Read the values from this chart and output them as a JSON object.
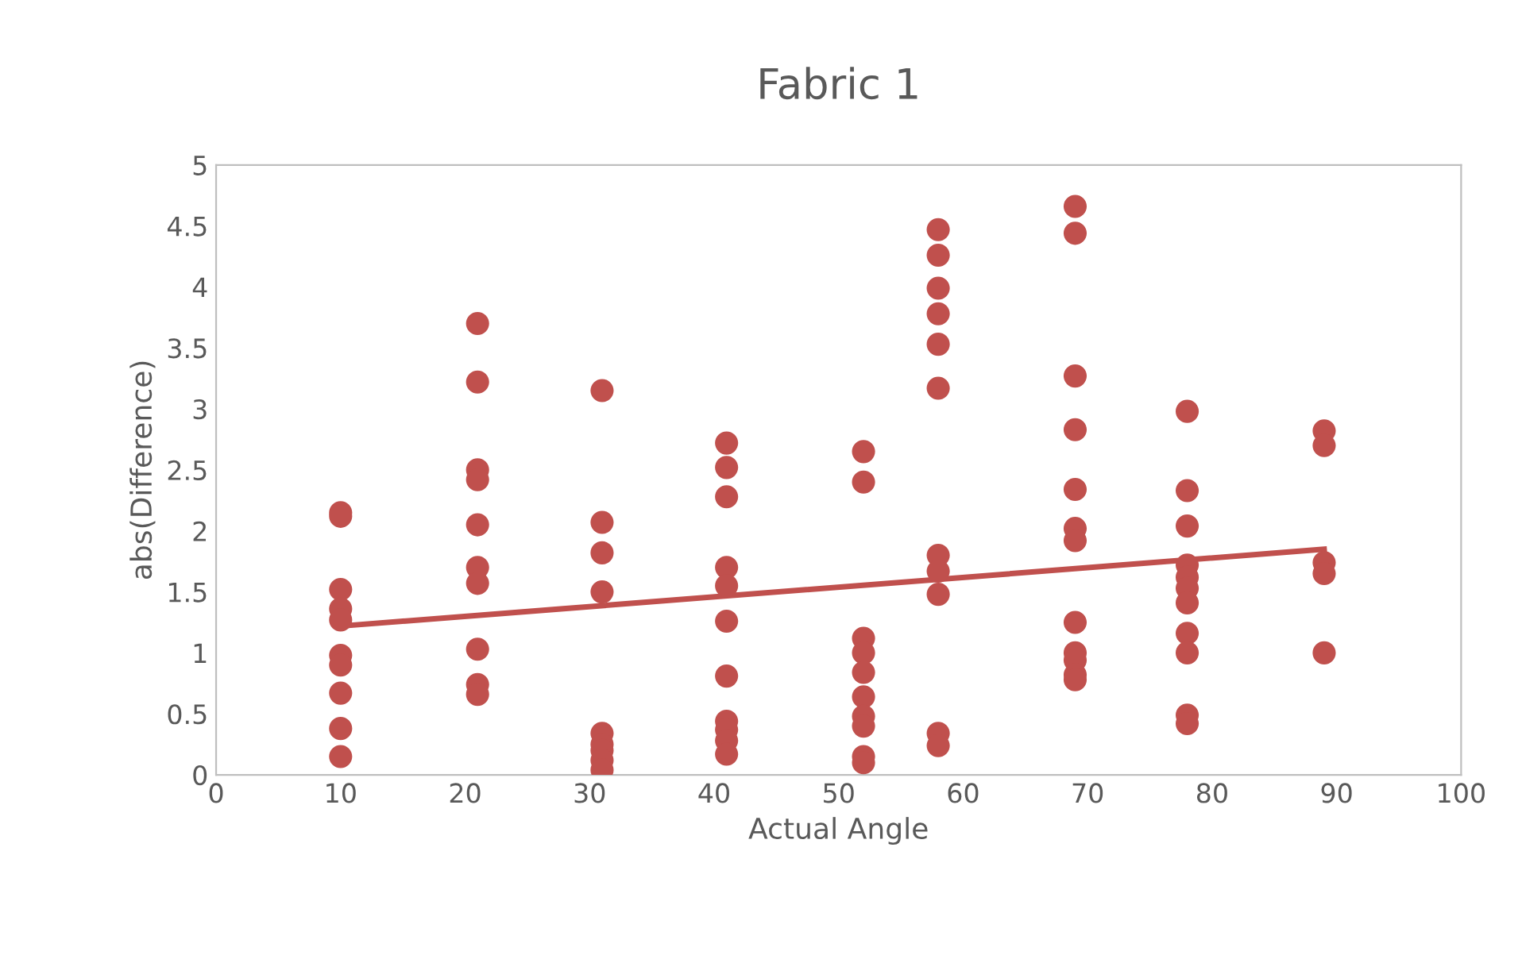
{
  "chart_data": {
    "type": "scatter",
    "title": "Fabric 1",
    "xlabel": "Actual Angle",
    "ylabel": "abs(Difference)",
    "xlim": [
      0,
      100
    ],
    "xticks": [
      0,
      10,
      20,
      30,
      40,
      50,
      60,
      70,
      80,
      90,
      100
    ],
    "ylim": [
      0,
      5
    ],
    "yticks": [
      0,
      0.5,
      1,
      1.5,
      2,
      2.5,
      3,
      3.5,
      4,
      4.5,
      5
    ],
    "grid": false,
    "series": [
      {
        "color": "#c0504d",
        "marker": "circle",
        "x": [
          10,
          10,
          10,
          10,
          10,
          10,
          10,
          10,
          10,
          10,
          21,
          21,
          21,
          21,
          21,
          21,
          21,
          21,
          21,
          21,
          31,
          31,
          31,
          31,
          31,
          31,
          31,
          31,
          31,
          41,
          41,
          41,
          41,
          41,
          41,
          41,
          41,
          41,
          41,
          41,
          52,
          52,
          52,
          52,
          52,
          52,
          52,
          52,
          52,
          52,
          58,
          58,
          58,
          58,
          58,
          58,
          58,
          58,
          58,
          58,
          58,
          69,
          69,
          69,
          69,
          69,
          69,
          69,
          69,
          69,
          69,
          69,
          69,
          78,
          78,
          78,
          78,
          78,
          78,
          78,
          78,
          78,
          78,
          78,
          89,
          89,
          89,
          89,
          89
        ],
        "values": [
          2.15,
          2.12,
          1.52,
          1.36,
          1.27,
          0.98,
          0.9,
          0.67,
          0.38,
          0.15,
          3.7,
          3.22,
          2.5,
          2.42,
          2.05,
          1.7,
          1.57,
          1.03,
          0.74,
          0.66,
          3.15,
          2.07,
          1.82,
          1.5,
          0.34,
          0.25,
          0.2,
          0.12,
          0.04,
          2.72,
          2.52,
          2.28,
          1.7,
          1.55,
          1.26,
          0.81,
          0.44,
          0.37,
          0.28,
          0.17,
          2.65,
          2.4,
          1.12,
          1.0,
          0.84,
          0.64,
          0.48,
          0.4,
          0.15,
          0.1,
          4.47,
          4.26,
          3.99,
          3.78,
          3.53,
          3.17,
          1.8,
          1.67,
          1.48,
          0.34,
          0.24,
          4.66,
          4.44,
          3.27,
          2.83,
          2.34,
          2.02,
          1.92,
          1.25,
          1.0,
          0.94,
          0.82,
          0.78,
          2.98,
          2.33,
          2.04,
          1.72,
          1.62,
          1.53,
          1.41,
          1.16,
          1.0,
          0.49,
          0.42,
          2.82,
          2.7,
          1.74,
          1.65,
          1.0
        ]
      },
      {
        "color": "#c0504d",
        "type": "line",
        "x": [
          10,
          89
        ],
        "values": [
          1.22,
          1.85
        ]
      }
    ]
  }
}
